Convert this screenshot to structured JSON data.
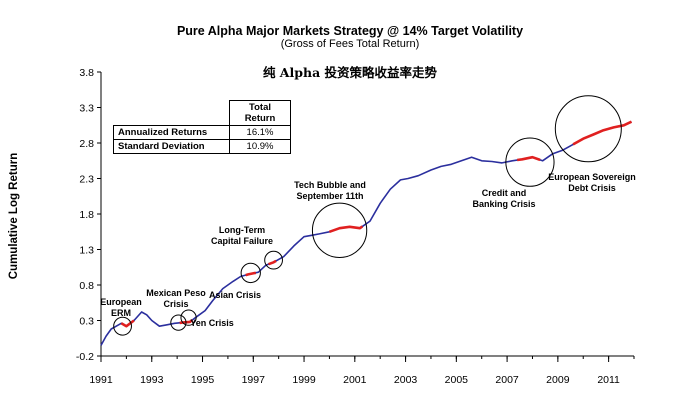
{
  "title": "Pure Alpha Major Markets Strategy  @ 14% Target Volatility",
  "subtitle": "(Gross of Fees Total Return)",
  "chinese_title": "纯 Alpha 投资策略收益率走势",
  "stats_table": {
    "column_header": "Total Return",
    "rows": [
      {
        "label": "Annualized Returns",
        "value": "16.1%"
      },
      {
        "label": "Standard Deviation",
        "value": "10.9%"
      }
    ]
  },
  "colors": {
    "line": "#2b2f9e",
    "highlight": "#e02020",
    "circle": "#000000",
    "axis": "#000000"
  },
  "chart_data": {
    "type": "line",
    "title": "Pure Alpha Major Markets Strategy  @ 14% Target Volatility",
    "xlabel": "",
    "ylabel": "Cumulative Log Return",
    "xlim": [
      1991,
      2012
    ],
    "ylim": [
      -0.2,
      3.8
    ],
    "yticks": [
      -0.2,
      0.3,
      0.8,
      1.3,
      1.8,
      2.3,
      2.8,
      3.3,
      3.8
    ],
    "ytick_labels": [
      "-0.2",
      "0.3",
      "0.8",
      "1.3",
      "1.8",
      "2.3",
      "2.8",
      "3.3",
      "3.8"
    ],
    "xticks": [
      1991,
      1993,
      1995,
      1997,
      1999,
      2001,
      2003,
      2005,
      2007,
      2009,
      2011
    ],
    "xtick_labels": [
      "1991",
      "1993",
      "1995",
      "1997",
      "1999",
      "2001",
      "2003",
      "2005",
      "2007",
      "2009",
      "2011"
    ],
    "series": [
      {
        "name": "Cumulative Log Return",
        "x": [
          1991.0,
          1991.2,
          1991.4,
          1991.6,
          1991.8,
          1992.0,
          1992.3,
          1992.6,
          1992.8,
          1993.0,
          1993.3,
          1993.6,
          1993.9,
          1994.2,
          1994.5,
          1994.8,
          1995.1,
          1995.4,
          1995.8,
          1996.2,
          1996.5,
          1996.8,
          1997.2,
          1997.5,
          1997.8,
          1998.2,
          1998.6,
          1999.0,
          1999.3,
          1999.6,
          2000.0,
          2000.4,
          2000.8,
          2001.2,
          2001.6,
          2002.0,
          2002.4,
          2002.8,
          2003.1,
          2003.5,
          2004.0,
          2004.4,
          2004.8,
          2005.2,
          2005.6,
          2006.0,
          2006.4,
          2006.8,
          2007.2,
          2007.6,
          2008.0,
          2008.4,
          2008.8,
          2009.2,
          2009.6,
          2010.0,
          2010.4,
          2010.8,
          2011.2,
          2011.6,
          2011.9
        ],
        "y": [
          -0.05,
          0.08,
          0.18,
          0.22,
          0.26,
          0.22,
          0.3,
          0.42,
          0.38,
          0.3,
          0.22,
          0.24,
          0.26,
          0.27,
          0.28,
          0.36,
          0.44,
          0.58,
          0.75,
          0.85,
          0.92,
          0.95,
          0.98,
          1.08,
          1.12,
          1.2,
          1.35,
          1.48,
          1.5,
          1.52,
          1.55,
          1.6,
          1.62,
          1.6,
          1.7,
          1.95,
          2.15,
          2.28,
          2.3,
          2.34,
          2.42,
          2.47,
          2.5,
          2.55,
          2.6,
          2.55,
          2.54,
          2.52,
          2.55,
          2.57,
          2.6,
          2.55,
          2.65,
          2.7,
          2.78,
          2.86,
          2.92,
          2.98,
          3.02,
          3.05,
          3.1
        ]
      }
    ],
    "highlighted_ranges": [
      [
        1991.8,
        1992.3
      ],
      [
        1994.1,
        1994.6
      ],
      [
        1996.7,
        1997.1
      ],
      [
        1997.6,
        1997.9
      ],
      [
        2000.0,
        2001.3
      ],
      [
        2007.4,
        2008.3
      ],
      [
        2009.6,
        2011.9
      ]
    ],
    "annotations": [
      {
        "text": [
          "European",
          "ERM"
        ],
        "x": 1991.85,
        "y": 0.22,
        "circle_radius_years": 0.35
      },
      {
        "text": [
          "Mexican Peso",
          "Crisis"
        ],
        "x": 1994.05,
        "y": 0.27,
        "circle_radius_years": 0.3
      },
      {
        "text": [
          "Yen Crisis"
        ],
        "x": 1994.45,
        "y": 0.34,
        "circle_radius_years": 0.3
      },
      {
        "text": [
          "Asian Crisis"
        ],
        "x": 1996.9,
        "y": 0.97,
        "circle_radius_years": 0.38
      },
      {
        "text": [
          "Long-Term",
          "Capital Failure"
        ],
        "x": 1997.8,
        "y": 1.15,
        "circle_radius_years": 0.35
      },
      {
        "text": [
          "Tech Bubble and",
          "September 11th"
        ],
        "x": 2000.4,
        "y": 1.57,
        "circle_radius_years": 1.07
      },
      {
        "text": [
          "Credit and",
          "Banking Crisis"
        ],
        "x": 2007.9,
        "y": 2.53,
        "circle_radius_years": 0.95
      },
      {
        "text": [
          "European Sovereign",
          "Debt Crisis"
        ],
        "x": 2010.2,
        "y": 3.0,
        "circle_radius_years": 1.3
      }
    ]
  }
}
